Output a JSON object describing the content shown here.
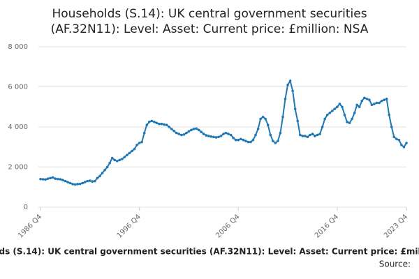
{
  "chart_data": {
    "type": "line",
    "title": [
      "Households (S.14): UK central government securities",
      "(AF.32N11): Level: Asset: Current price: £million: NSA"
    ],
    "source": "Source:",
    "categories": [
      "1986 Q4",
      null,
      null,
      null,
      null,
      null,
      null,
      null,
      null,
      null,
      null,
      null,
      null,
      null,
      null,
      null,
      null,
      null,
      null,
      null,
      null,
      null,
      null,
      null,
      null,
      null,
      null,
      null,
      null,
      null,
      null,
      null,
      null,
      null,
      null,
      null,
      null,
      null,
      null,
      null,
      "1996 Q4",
      null,
      null,
      null,
      null,
      null,
      null,
      null,
      null,
      null,
      null,
      null,
      null,
      null,
      null,
      null,
      null,
      null,
      null,
      null,
      null,
      null,
      null,
      null,
      null,
      null,
      null,
      null,
      null,
      null,
      null,
      null,
      null,
      null,
      null,
      null,
      null,
      null,
      null,
      null,
      "2006 Q4",
      null,
      null,
      null,
      null,
      null,
      null,
      null,
      null,
      null,
      null,
      null,
      null,
      null,
      null,
      null,
      null,
      null,
      null,
      null,
      null,
      null,
      null,
      null,
      null,
      null,
      null,
      null,
      null,
      null,
      null,
      null,
      null,
      null,
      null,
      null,
      null,
      null,
      null,
      null,
      "2016 Q4",
      null,
      null,
      null,
      null,
      null,
      null,
      null,
      null,
      null,
      null,
      null,
      null,
      null,
      null,
      null,
      null,
      null,
      null,
      null,
      null,
      null,
      null,
      null,
      null,
      null,
      null,
      null,
      "2023 Q4"
    ],
    "series": [
      {
        "name": "Households (S.14): UK central government securities (AF.32N11): Level: Asset: Current price: £million: NSA",
        "color": "#1f78b4",
        "values": [
          1400,
          1390,
          1380,
          1420,
          1450,
          1480,
          1420,
          1400,
          1390,
          1350,
          1300,
          1250,
          1200,
          1150,
          1130,
          1150,
          1160,
          1200,
          1250,
          1300,
          1320,
          1280,
          1300,
          1450,
          1550,
          1700,
          1850,
          2000,
          2200,
          2450,
          2350,
          2300,
          2350,
          2400,
          2500,
          2600,
          2700,
          2800,
          2900,
          3100,
          3200,
          3250,
          3700,
          4100,
          4250,
          4300,
          4250,
          4200,
          4150,
          4150,
          4120,
          4100,
          4000,
          3900,
          3800,
          3700,
          3650,
          3600,
          3620,
          3700,
          3780,
          3850,
          3900,
          3920,
          3850,
          3750,
          3650,
          3580,
          3550,
          3520,
          3500,
          3480,
          3500,
          3550,
          3650,
          3700,
          3650,
          3600,
          3450,
          3350,
          3350,
          3400,
          3350,
          3300,
          3250,
          3250,
          3350,
          3600,
          3900,
          4400,
          4500,
          4400,
          4100,
          3600,
          3300,
          3200,
          3300,
          3700,
          4500,
          5400,
          6100,
          6300,
          5800,
          4900,
          4300,
          3600,
          3550,
          3550,
          3500,
          3600,
          3650,
          3550,
          3600,
          3650,
          4000,
          4400,
          4600,
          4700,
          4800,
          4900,
          5000,
          5150,
          5000,
          4600,
          4250,
          4200,
          4400,
          4700,
          5100,
          5000,
          5300,
          5450,
          5400,
          5350,
          5100,
          5150,
          5200,
          5200,
          5300,
          5350,
          5400,
          4600,
          4000,
          3500,
          3400,
          3350,
          3100,
          3000,
          3200
        ]
      }
    ],
    "ylim": [
      0,
      8000
    ],
    "yticks": [
      0,
      {
        "value": 2000,
        "label": "2 000"
      },
      {
        "value": 4000,
        "label": "4 000"
      },
      {
        "value": 6000,
        "label": "6 000"
      },
      {
        "value": 8000,
        "label": "8 000"
      }
    ],
    "grid": true
  }
}
